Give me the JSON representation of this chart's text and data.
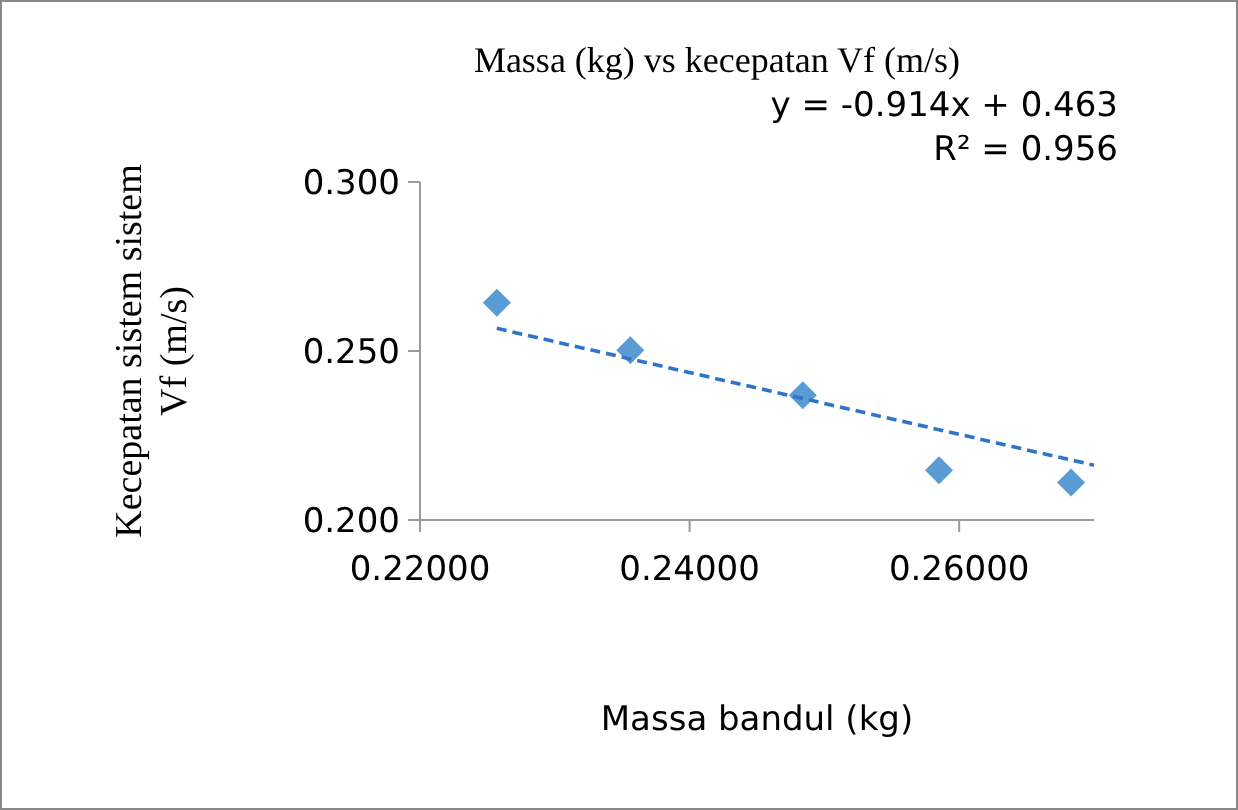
{
  "chart_data": {
    "type": "scatter",
    "title": "Massa (kg) vs kecepatan Vf (m/s)",
    "xlabel": "Massa bandul (kg)",
    "ylabel": "Kecepatan sistem sistem Vf (m/s)",
    "annotations": [
      "y = -0.914x + 0.463",
      "R² = 0.956"
    ],
    "series": [
      {
        "color": "#5b9bd5",
        "marker": "diamond",
        "x": [
          0.2257,
          0.2356,
          0.2484,
          0.2585,
          0.2683
        ],
        "values": [
          0.2643,
          0.2502,
          0.2369,
          0.2147,
          0.2111
        ]
      },
      {
        "type": "line",
        "color": "#2e75c8",
        "line_style": "dashed",
        "marker": "none",
        "x": [
          0.2257,
          0.27
        ],
        "values": [
          0.2567,
          0.2162
        ]
      }
    ],
    "xlim": [
      0.22,
      0.27
    ],
    "xticks": [
      {
        "value": 0.22,
        "label": "0.22000"
      },
      {
        "value": 0.24,
        "label": "0.24000"
      },
      {
        "value": 0.26,
        "label": "0.26000"
      }
    ],
    "ylim": [
      0.2,
      0.3
    ],
    "yticks": [
      {
        "value": 0.2,
        "label": "0.200"
      },
      {
        "value": 0.25,
        "label": "0.250"
      },
      {
        "value": 0.3,
        "label": "0.300"
      }
    ],
    "grid": false
  }
}
